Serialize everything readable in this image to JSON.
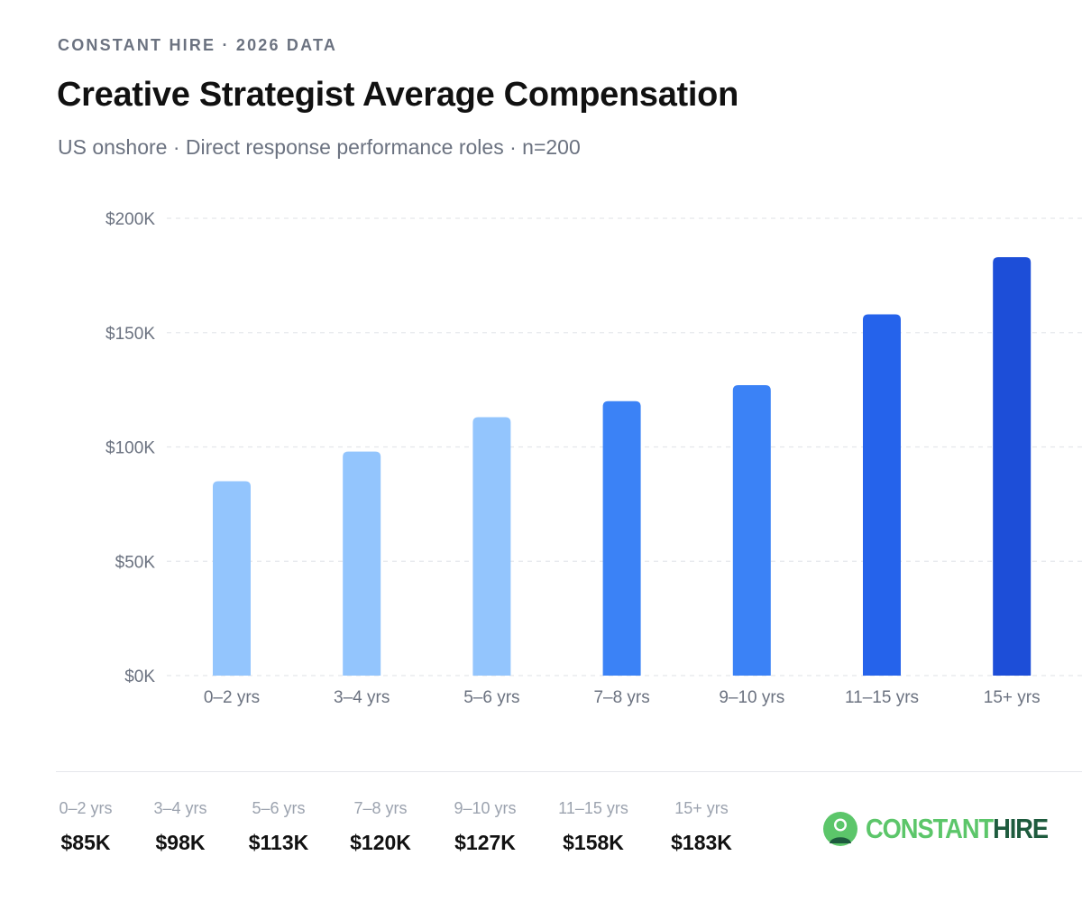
{
  "header": {
    "eyebrow": "CONSTANT HIRE · 2026 DATA",
    "title": "Creative Strategist Average Compensation",
    "subtitle": "US onshore · Direct response performance roles · n=200"
  },
  "chart_data": {
    "type": "bar",
    "title": "Creative Strategist Average Compensation",
    "subtitle": "US onshore · Direct response performance roles · n=200",
    "xlabel": "",
    "ylabel": "",
    "categories": [
      "0–2 yrs",
      "3–4 yrs",
      "5–6 yrs",
      "7–8 yrs",
      "9–10 yrs",
      "11–15 yrs",
      "15+ yrs"
    ],
    "values": [
      85,
      98,
      113,
      120,
      127,
      158,
      183
    ],
    "value_unit": "thousand USD",
    "ylim": [
      0,
      200
    ],
    "y_ticks": [
      0,
      50,
      100,
      150,
      200
    ],
    "y_tick_labels": [
      "$0K",
      "$50K",
      "$100K",
      "$150K",
      "$200K"
    ],
    "grid": true,
    "bar_colors": [
      "#93c5fd",
      "#93c5fd",
      "#93c5fd",
      "#3b82f6",
      "#3b82f6",
      "#2563eb",
      "#1d4ed8"
    ]
  },
  "summary": {
    "items": [
      {
        "label": "0–2 yrs",
        "value": "$85K"
      },
      {
        "label": "3–4 yrs",
        "value": "$98K"
      },
      {
        "label": "5–6 yrs",
        "value": "$113K"
      },
      {
        "label": "7–8 yrs",
        "value": "$120K"
      },
      {
        "label": "9–10 yrs",
        "value": "$127K"
      },
      {
        "label": "11–15 yrs",
        "value": "$158K"
      },
      {
        "label": "15+ yrs",
        "value": "$183K"
      }
    ]
  },
  "brand": {
    "logo_part1": "CONSTANT",
    "logo_part2": "HIRE",
    "colors": {
      "light_green": "#5cc66a",
      "dark_green": "#1e5b3e"
    },
    "logo_icon": "person-in-circle-icon"
  }
}
